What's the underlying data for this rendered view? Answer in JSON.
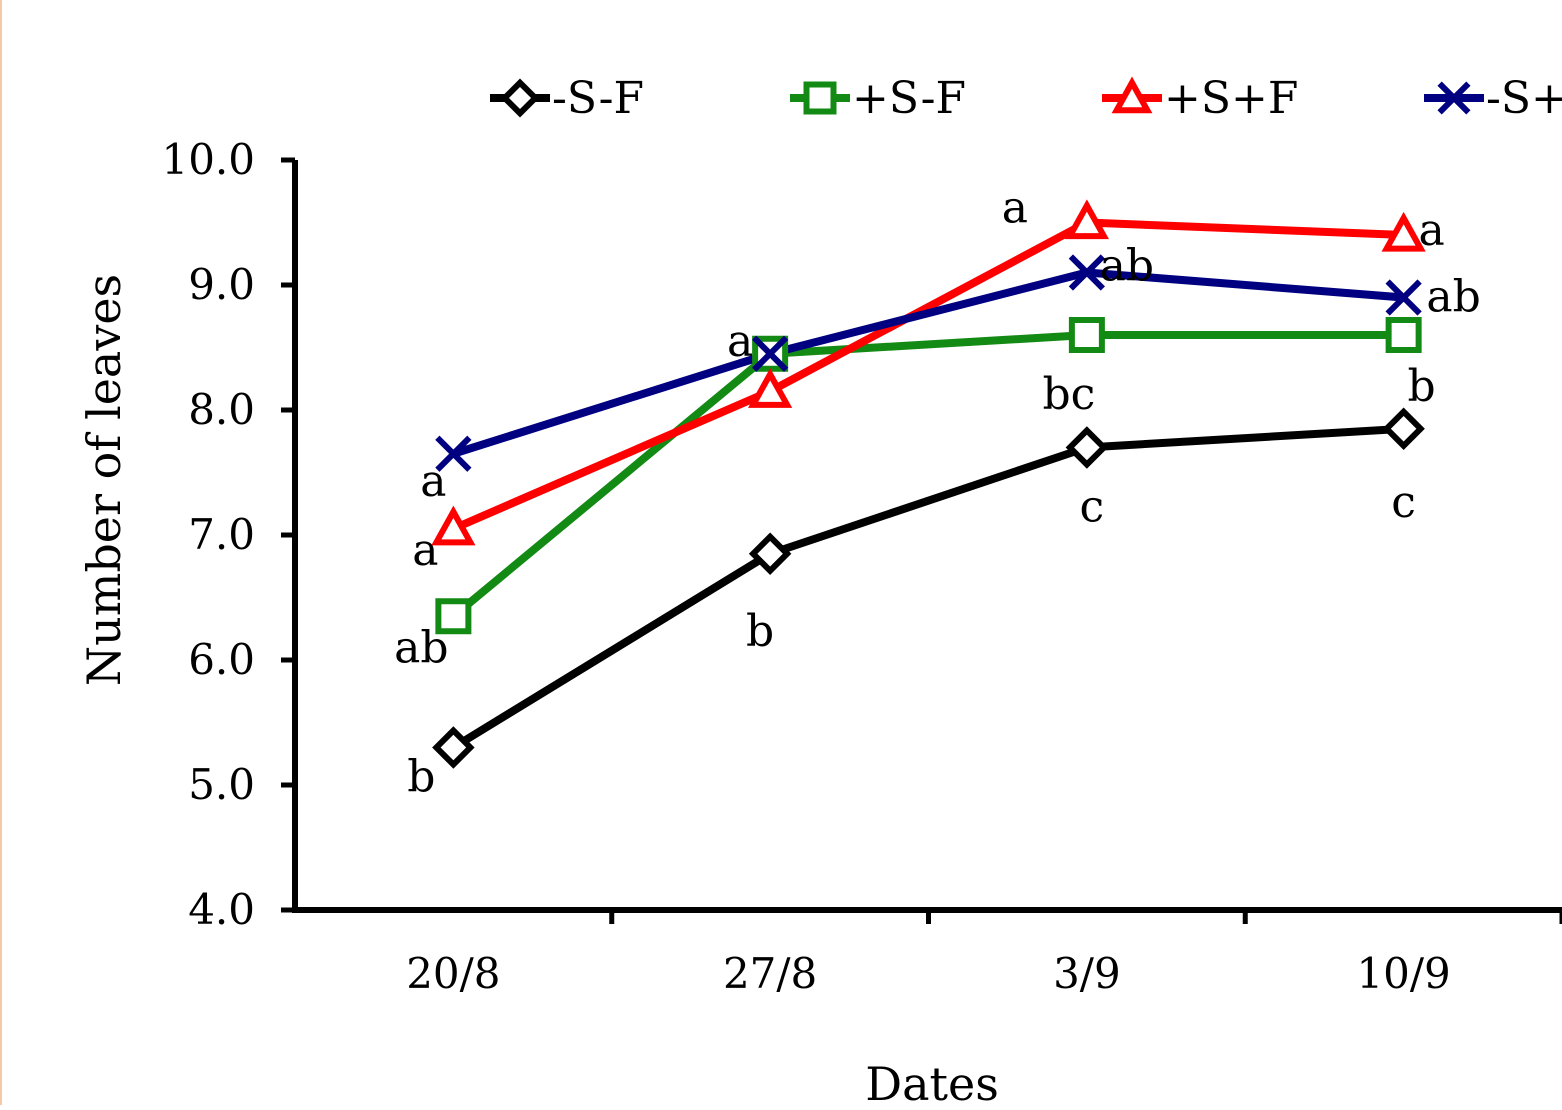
{
  "chart_data": {
    "type": "line",
    "title": "",
    "xlabel": "Dates",
    "ylabel": "Number of leaves",
    "categories": [
      "20/8",
      "27/8",
      "3/9",
      "10/9"
    ],
    "ylim": [
      4.0,
      10.0
    ],
    "yticks": [
      "4.0",
      "5.0",
      "6.0",
      "7.0",
      "8.0",
      "9.0",
      "10.0"
    ],
    "legend_position": "top",
    "grid": false,
    "series": [
      {
        "name": "-S-F",
        "color": "#000000",
        "marker": "diamond",
        "values": [
          5.3,
          6.85,
          7.7,
          7.85
        ],
        "letters": [
          "b",
          "b",
          "c",
          "c"
        ]
      },
      {
        "name": "+S-F",
        "color": "#138a13",
        "marker": "square",
        "values": [
          6.35,
          8.45,
          8.6,
          8.6
        ],
        "letters": [
          "ab",
          "",
          "bc",
          "b"
        ]
      },
      {
        "name": "+S+F",
        "color": "#ff0000",
        "marker": "triangle",
        "values": [
          7.05,
          8.15,
          9.5,
          9.4
        ],
        "letters": [
          "a",
          "",
          "a",
          "a"
        ]
      },
      {
        "name": "-S+",
        "color": "#000080",
        "marker": "x",
        "values": [
          7.65,
          8.45,
          9.1,
          8.9
        ],
        "letters": [
          "a",
          "a",
          "ab",
          "ab"
        ]
      }
    ]
  }
}
